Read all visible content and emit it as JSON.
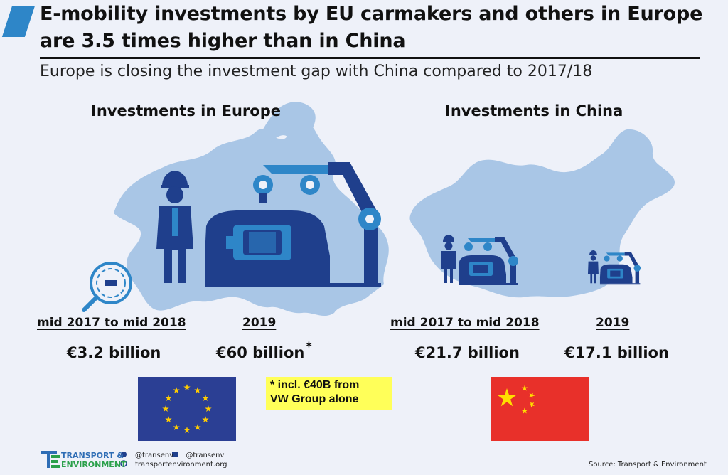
{
  "header": {
    "title_line1": "E-mobility investments by EU carmakers and others in Europe",
    "title_line2": "are 3.5 times higher than in China",
    "subtitle": "Europe is closing the investment gap with China compared to 2017/18"
  },
  "chart_data": {
    "type": "infographic",
    "unit": "€ billion",
    "groups": [
      {
        "heading": "Investments in Europe",
        "periods": [
          {
            "label": "mid 2017 to mid 2018",
            "value": 3.2,
            "value_label": "€3.2 billion"
          },
          {
            "label": "2019",
            "value": 60,
            "value_label": "€60 billion",
            "footnote_mark": "*"
          }
        ]
      },
      {
        "heading": "Investments in China",
        "periods": [
          {
            "label": "mid 2017 to mid 2018",
            "value": 21.7,
            "value_label": "€21.7 billion"
          },
          {
            "label": "2019",
            "value": 17.1,
            "value_label": "€17.1 billion"
          }
        ]
      }
    ],
    "footnote": {
      "line1": "* incl. €40B from",
      "line2": "VW Group alone"
    }
  },
  "footer": {
    "org_line1": "TRANSPORT &",
    "org_line2": "ENVIRONMENT",
    "twitter": "@transenv",
    "facebook": "@transenv",
    "website": "transportenvironment.org",
    "source": "Source: Transport & Environment"
  },
  "colors": {
    "accent": "#2e86c8",
    "background": "#eef1f9",
    "map": "#a9c6e6",
    "icon_dark": "#1f3f8c",
    "icon_light": "#2e86c8",
    "eu_flag": "#2b3f94",
    "eu_stars": "#ffcc00",
    "cn_flag": "#e8302a",
    "cn_stars": "#ffde00",
    "note_bg": "#ffff59"
  },
  "icons": [
    "factory-robot-icon",
    "worker-icon",
    "magnifier-icon",
    "eu-flag-icon",
    "china-flag-icon",
    "twitter-icon",
    "facebook-icon",
    "globe-icon",
    "te-logo-icon"
  ]
}
